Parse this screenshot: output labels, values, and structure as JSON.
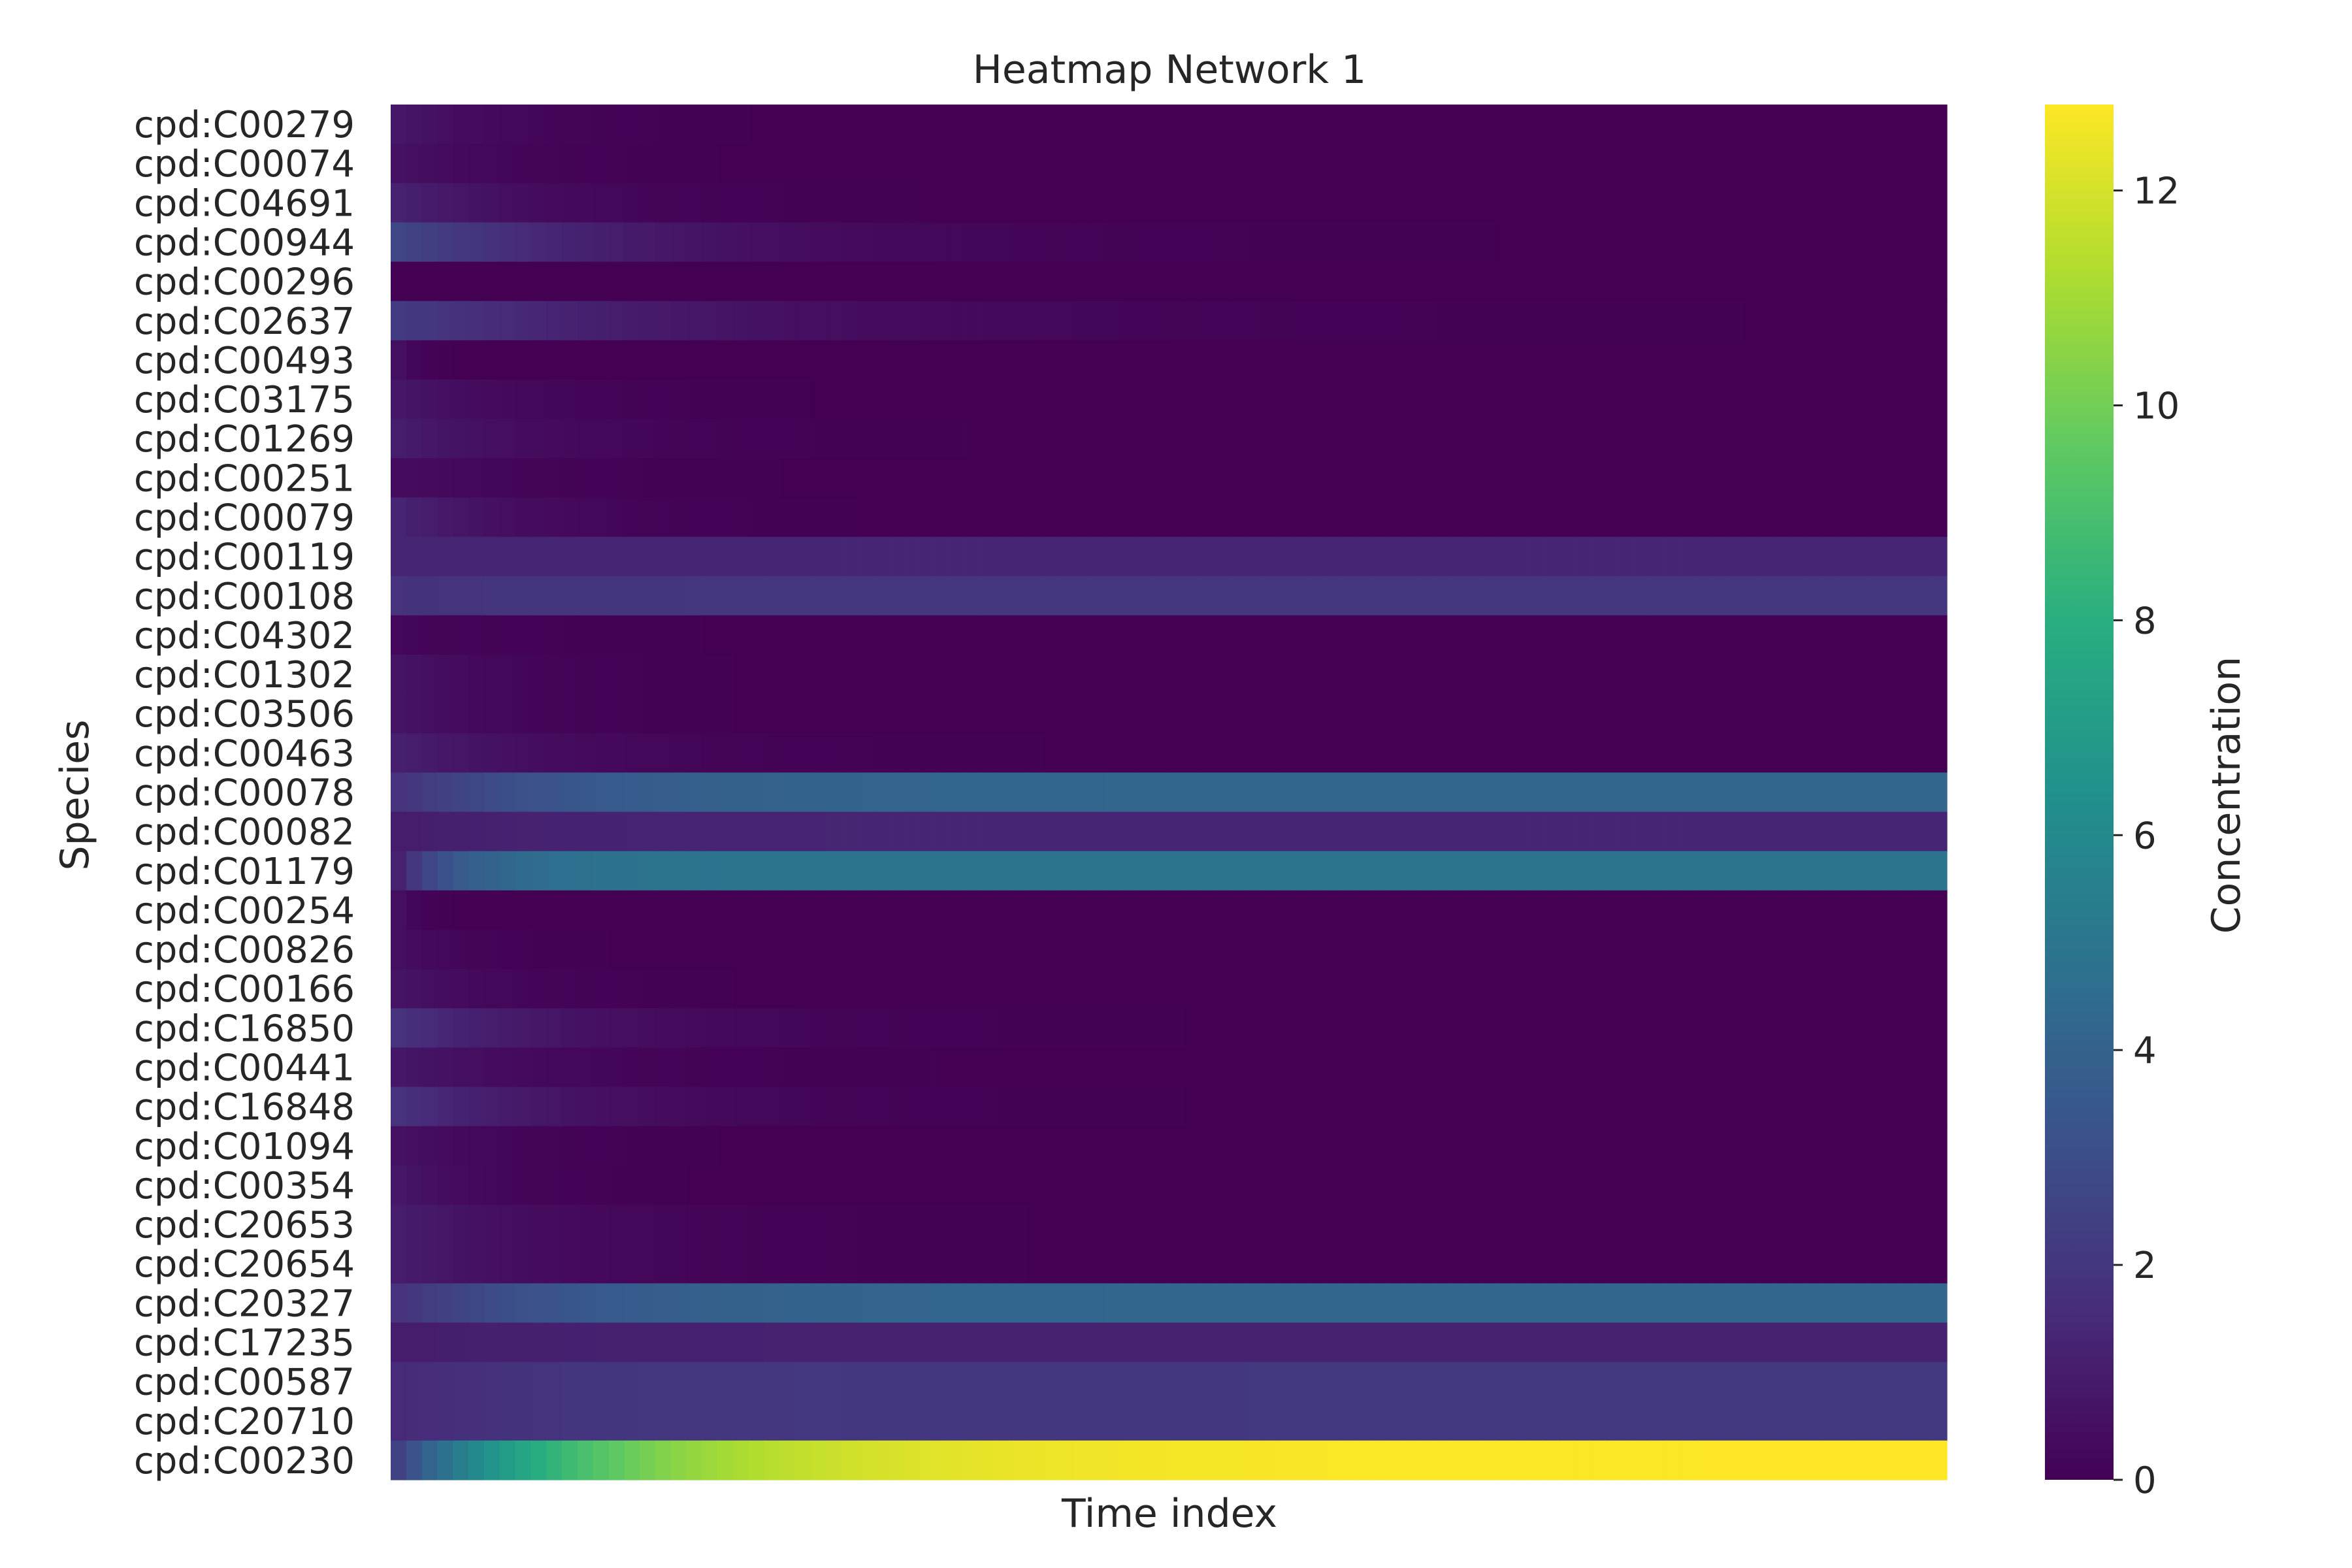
{
  "chart_data": {
    "type": "heatmap",
    "title": "Heatmap Network 1",
    "xlabel": "Time index",
    "ylabel": "Species",
    "colorbar": {
      "label": "Concentration",
      "colormap": "viridis",
      "range": [
        0,
        12.8
      ],
      "ticks": [
        "0",
        "2",
        "4",
        "6",
        "8",
        "10",
        "12"
      ]
    },
    "grid": false,
    "time_points": 100,
    "x_ticks_visible": false,
    "rows": [
      {
        "species": "cpd:C00279",
        "start": 0.8,
        "end": 0.0,
        "rate": 6
      },
      {
        "species": "cpd:C00074",
        "start": 0.6,
        "end": 0.0,
        "rate": 6
      },
      {
        "species": "cpd:C04691",
        "start": 1.2,
        "end": 0.0,
        "rate": 8
      },
      {
        "species": "cpd:C00944",
        "start": 2.7,
        "end": 0.0,
        "rate": 14
      },
      {
        "species": "cpd:C00296",
        "start": 0.0,
        "end": 0.0,
        "rate": 5
      },
      {
        "species": "cpd:C02637",
        "start": 2.2,
        "end": 0.0,
        "rate": 18
      },
      {
        "species": "cpd:C00493",
        "start": 0.5,
        "end": 0.0,
        "rate": 1
      },
      {
        "species": "cpd:C03175",
        "start": 0.8,
        "end": 0.0,
        "rate": 7
      },
      {
        "species": "cpd:C01269",
        "start": 1.0,
        "end": 0.0,
        "rate": 9
      },
      {
        "species": "cpd:C00251",
        "start": 0.4,
        "end": 0.0,
        "rate": 8
      },
      {
        "species": "cpd:C00079",
        "start": 1.3,
        "end": 0.0,
        "rate": 7
      },
      {
        "species": "cpd:C00119",
        "start": 1.3,
        "end": 1.3,
        "rate": 10
      },
      {
        "species": "cpd:C00108",
        "start": 1.8,
        "end": 2.0,
        "rate": 10
      },
      {
        "species": "cpd:C04302",
        "start": 0.2,
        "end": 0.0,
        "rate": 8
      },
      {
        "species": "cpd:C01302",
        "start": 0.7,
        "end": 0.0,
        "rate": 6
      },
      {
        "species": "cpd:C03506",
        "start": 0.7,
        "end": 0.0,
        "rate": 6
      },
      {
        "species": "cpd:C00463",
        "start": 1.1,
        "end": 0.0,
        "rate": 10
      },
      {
        "species": "cpd:C00078",
        "start": 1.8,
        "end": 4.2,
        "rate": 10
      },
      {
        "species": "cpd:C00082",
        "start": 1.0,
        "end": 1.3,
        "rate": 8
      },
      {
        "species": "cpd:C01179",
        "start": 1.2,
        "end": 4.9,
        "rate": 4
      },
      {
        "species": "cpd:C00254",
        "start": 0.5,
        "end": 0.0,
        "rate": 1
      },
      {
        "species": "cpd:C00826",
        "start": 0.5,
        "end": 0.0,
        "rate": 4
      },
      {
        "species": "cpd:C00166",
        "start": 0.7,
        "end": 0.0,
        "rate": 6
      },
      {
        "species": "cpd:C16850",
        "start": 1.8,
        "end": 0.0,
        "rate": 11
      },
      {
        "species": "cpd:C00441",
        "start": 0.8,
        "end": 0.0,
        "rate": 9
      },
      {
        "species": "cpd:C16848",
        "start": 1.8,
        "end": 0.0,
        "rate": 11
      },
      {
        "species": "cpd:C01094",
        "start": 0.6,
        "end": 0.0,
        "rate": 6
      },
      {
        "species": "cpd:C00354",
        "start": 0.8,
        "end": 0.0,
        "rate": 5
      },
      {
        "species": "cpd:C20653",
        "start": 1.0,
        "end": 0.0,
        "rate": 10
      },
      {
        "species": "cpd:C20654",
        "start": 1.0,
        "end": 0.0,
        "rate": 10
      },
      {
        "species": "cpd:C20327",
        "start": 1.8,
        "end": 4.2,
        "rate": 10
      },
      {
        "species": "cpd:C17235",
        "start": 1.0,
        "end": 1.2,
        "rate": 10
      },
      {
        "species": "cpd:C00587",
        "start": 1.5,
        "end": 2.1,
        "rate": 10
      },
      {
        "species": "cpd:C20710",
        "start": 1.5,
        "end": 2.1,
        "rate": 10
      },
      {
        "species": "cpd:C00230",
        "start": 2.5,
        "end": 12.8,
        "rate": 12
      }
    ]
  }
}
